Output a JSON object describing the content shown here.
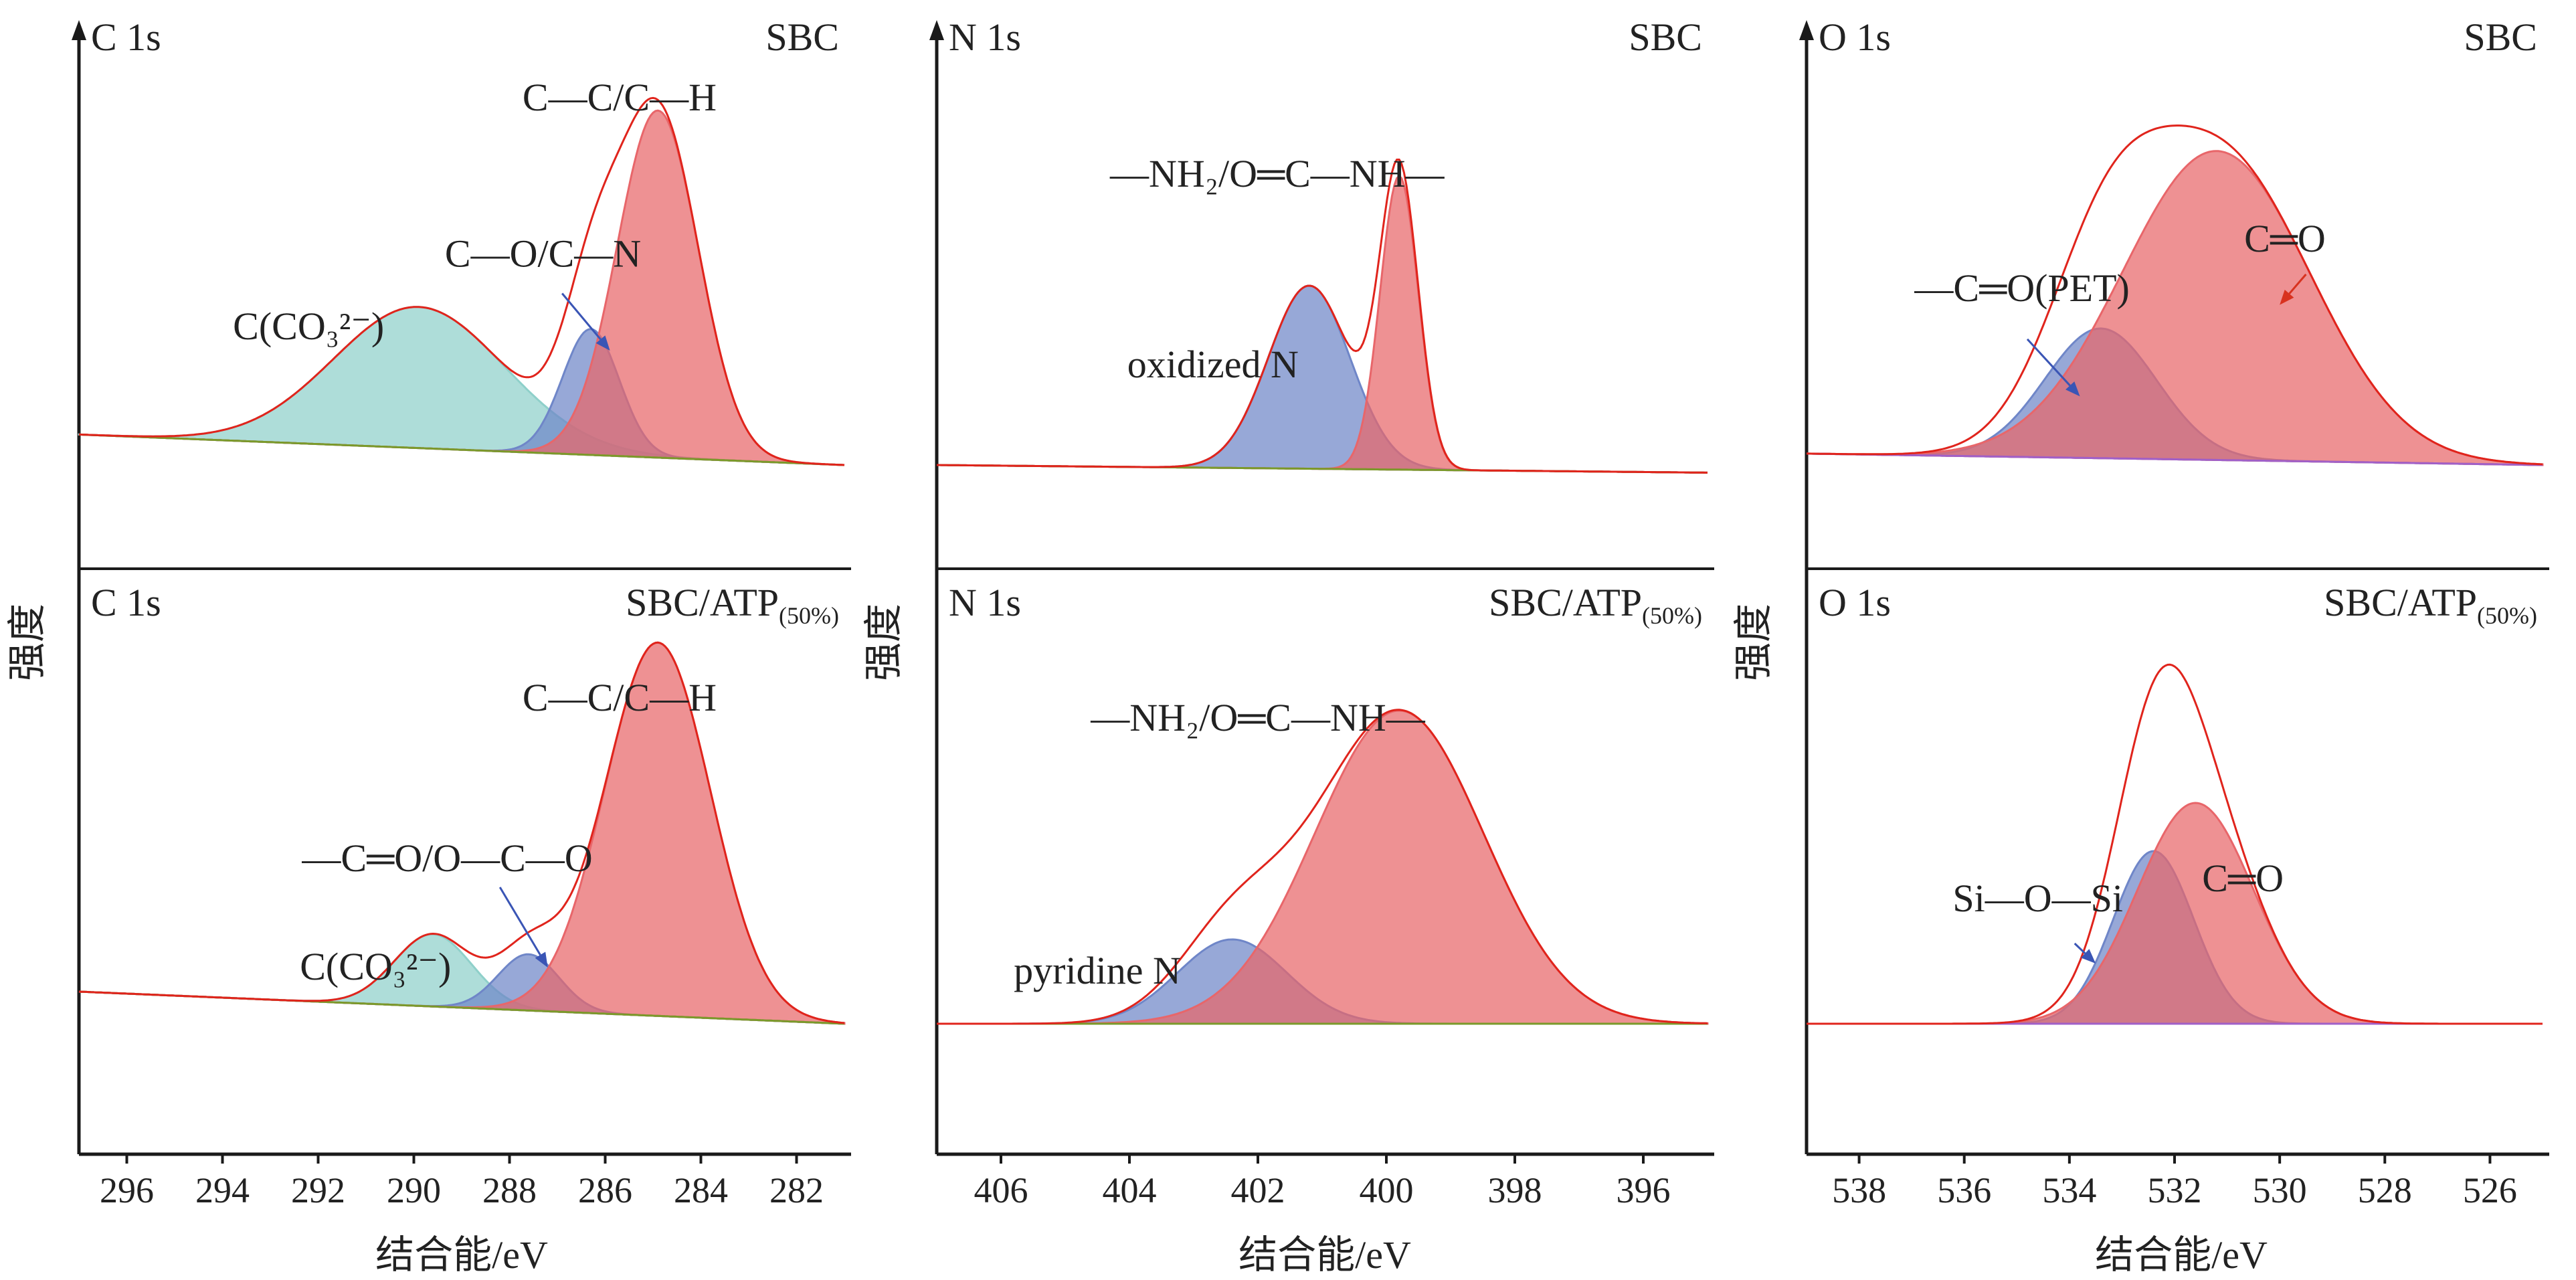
{
  "figure": {
    "ylabel": "强度",
    "xlabel": "结合能/eV"
  },
  "colors": {
    "red": "#e8666a",
    "blue": "#6f86c8",
    "teal": "#8fd0ca",
    "envelope": "#e0241c",
    "arrow_blue": "#3a55b5",
    "arrow_red": "#d8321f",
    "axis": "#1a1a1a",
    "baseline": "#7a9a2a",
    "o_baseline": "#a060c8"
  },
  "chart_data": [
    {
      "type": "line",
      "element": "C 1s",
      "sample": "SBC",
      "column": 0,
      "row": 0,
      "x_reversed": true,
      "xlim": [
        297,
        281
      ],
      "xticks": [
        296,
        294,
        292,
        290,
        288,
        286,
        284,
        282
      ],
      "baseline": {
        "left": 0.08,
        "right": 0.0
      },
      "peaks": [
        {
          "label": "C(CO3 2-)",
          "center": 289.9,
          "fwhm": 4.2,
          "height": 0.37,
          "color": "teal"
        },
        {
          "label": "C—O/C—N",
          "center": 286.3,
          "fwhm": 1.4,
          "height": 0.33,
          "color": "blue"
        },
        {
          "label": "C—C/C—H",
          "center": 284.9,
          "fwhm": 2.0,
          "height": 0.91,
          "color": "red"
        }
      ],
      "annotations": [
        {
          "text": "C—C/C—H",
          "x": 285.7,
          "y": 0.93
        },
        {
          "text": "C—O/C—N",
          "x": 287.3,
          "y": 0.52
        },
        {
          "text": "C(CO₃²⁻)",
          "x": 292.2,
          "y": 0.33
        }
      ],
      "arrows": [
        {
          "from": [
            286.9,
            0.45
          ],
          "to": [
            285.9,
            0.3
          ],
          "color": "arrow_blue"
        }
      ]
    },
    {
      "type": "line",
      "element": "C 1s",
      "sample": "SBC/ATP",
      "sample_sub": "(50%)",
      "column": 0,
      "row": 1,
      "x_reversed": true,
      "xlim": [
        297,
        281
      ],
      "xticks": [
        296,
        294,
        292,
        290,
        288,
        286,
        284,
        282
      ],
      "baseline": {
        "left": 0.08,
        "right": 0.0
      },
      "peaks": [
        {
          "label": "C(CO3 2-)",
          "center": 289.6,
          "fwhm": 1.9,
          "height": 0.18,
          "color": "teal"
        },
        {
          "label": "—C═O/O—C—O",
          "center": 287.6,
          "fwhm": 1.5,
          "height": 0.14,
          "color": "blue"
        },
        {
          "label": "C—C/C—H",
          "center": 284.9,
          "fwhm": 2.6,
          "height": 0.93,
          "color": "red"
        }
      ],
      "annotations": [
        {
          "text": "C—C/C—H",
          "x": 285.7,
          "y": 0.78
        },
        {
          "text": "—C═O/O—C—O",
          "x": 289.3,
          "y": 0.38
        },
        {
          "text": "C(CO₃²⁻)",
          "x": 290.8,
          "y": 0.11
        }
      ],
      "arrows": [
        {
          "from": [
            288.2,
            0.34
          ],
          "to": [
            287.2,
            0.14
          ],
          "color": "arrow_blue"
        }
      ]
    },
    {
      "type": "line",
      "element": "N 1s",
      "sample": "SBC",
      "column": 1,
      "row": 0,
      "x_reversed": true,
      "xlim": [
        407,
        395
      ],
      "xticks": [
        406,
        404,
        402,
        400,
        398,
        396
      ],
      "baseline": {
        "left": 0.0,
        "right": -0.02
      },
      "peaks": [
        {
          "label": "oxidized N",
          "center": 401.2,
          "fwhm": 1.5,
          "height": 0.48,
          "color": "blue"
        },
        {
          "label": "—NH2/O═C—NH—",
          "center": 399.8,
          "fwhm": 0.7,
          "height": 0.77,
          "color": "red"
        }
      ],
      "annotations": [
        {
          "text": "—NH₂/O═C—NH—",
          "x": 401.7,
          "y": 0.73
        },
        {
          "text": "oxidized N",
          "x": 402.7,
          "y": 0.23
        }
      ],
      "arrows": []
    },
    {
      "type": "line",
      "element": "N 1s",
      "sample": "SBC/ATP",
      "sample_sub": "(50%)",
      "column": 1,
      "row": 1,
      "x_reversed": true,
      "xlim": [
        407,
        395
      ],
      "xticks": [
        406,
        404,
        402,
        400,
        398,
        396
      ],
      "baseline": {
        "left": 0.0,
        "right": 0.0
      },
      "peaks": [
        {
          "label": "pyridine N",
          "center": 402.4,
          "fwhm": 2.0,
          "height": 0.21,
          "color": "blue"
        },
        {
          "label": "—NH2/O═C—NH—",
          "center": 399.8,
          "fwhm": 3.1,
          "height": 0.78,
          "color": "red"
        }
      ],
      "annotations": [
        {
          "text": "—NH₂/O═C—NH—",
          "x": 402.0,
          "y": 0.73
        },
        {
          "text": "pyridine N",
          "x": 404.5,
          "y": 0.1
        }
      ],
      "arrows": []
    },
    {
      "type": "line",
      "element": "O 1s",
      "sample": "SBC",
      "column": 2,
      "row": 0,
      "x_reversed": true,
      "xlim": [
        539,
        525
      ],
      "xticks": [
        538,
        536,
        534,
        532,
        530,
        528,
        526
      ],
      "baseline": {
        "left": 0.03,
        "right": 0.0
      },
      "peaks": [
        {
          "label": "—C═O(PET)",
          "center": 533.4,
          "fwhm": 2.5,
          "height": 0.34,
          "color": "blue"
        },
        {
          "label": "C═O",
          "center": 531.2,
          "fwhm": 4.2,
          "height": 0.81,
          "color": "red"
        }
      ],
      "annotations": [
        {
          "text": "C═O",
          "x": 529.9,
          "y": 0.56
        },
        {
          "text": "—C═O(PET)",
          "x": 534.9,
          "y": 0.43
        }
      ],
      "arrows": [
        {
          "from": [
            529.5,
            0.5
          ],
          "to": [
            530.0,
            0.42
          ],
          "color": "arrow_red"
        },
        {
          "from": [
            534.8,
            0.33
          ],
          "to": [
            533.8,
            0.18
          ],
          "color": "arrow_blue"
        }
      ]
    },
    {
      "type": "line",
      "element": "O 1s",
      "sample": "SBC/ATP",
      "sample_sub": "(50%)",
      "column": 2,
      "row": 1,
      "x_reversed": true,
      "xlim": [
        539,
        525
      ],
      "xticks": [
        538,
        536,
        534,
        532,
        530,
        528,
        526
      ],
      "baseline": {
        "left": 0.0,
        "right": 0.0
      },
      "peaks": [
        {
          "label": "Si—O—Si",
          "center": 532.4,
          "fwhm": 1.8,
          "height": 0.43,
          "color": "blue"
        },
        {
          "label": "C═O",
          "center": 531.6,
          "fwhm": 2.6,
          "height": 0.55,
          "color": "red"
        }
      ],
      "annotations": [
        {
          "text": "C═O",
          "x": 530.7,
          "y": 0.33
        },
        {
          "text": "Si—O—Si",
          "x": 534.6,
          "y": 0.28
        }
      ],
      "arrows": [
        {
          "from": [
            533.9,
            0.2
          ],
          "to": [
            533.5,
            0.15
          ],
          "color": "arrow_blue"
        }
      ]
    }
  ]
}
